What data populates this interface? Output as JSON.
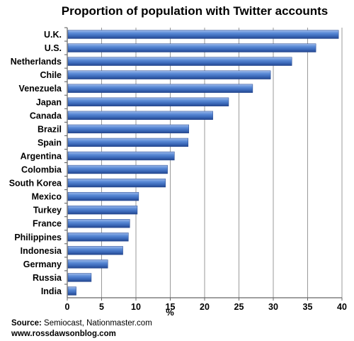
{
  "chart_data": {
    "type": "bar",
    "orientation": "horizontal",
    "title": "Proportion of population with Twitter accounts",
    "xlabel": "%",
    "ylabel": "",
    "xlim": [
      0,
      40
    ],
    "x_ticks": [
      "0",
      "5",
      "10",
      "15",
      "20",
      "25",
      "30",
      "35",
      "40"
    ],
    "grid": true,
    "legend": "none",
    "categories": [
      "U.K.",
      "U.S.",
      "Netherlands",
      "Chile",
      "Venezuela",
      "Japan",
      "Canada",
      "Brazil",
      "Spain",
      "Argentina",
      "Colombia",
      "South Korea",
      "Mexico",
      "Turkey",
      "France",
      "Philippines",
      "Indonesia",
      "Germany",
      "Russia",
      "India"
    ],
    "values": [
      39.5,
      36.2,
      32.7,
      29.6,
      27.0,
      23.5,
      21.2,
      17.7,
      17.6,
      15.6,
      14.6,
      14.3,
      10.4,
      10.2,
      9.1,
      8.9,
      8.1,
      5.9,
      3.5,
      1.3
    ],
    "colors": {
      "bar_light": "#9db9ea",
      "bar_mid": "#4a7ed0",
      "bar_dark": "#23458d",
      "grid": "#9a9a9a"
    }
  },
  "footer": {
    "source_label": "Source:",
    "source_text": " Semiocast, Nationmaster.com",
    "website": "www.rossdawsonblog.com"
  }
}
